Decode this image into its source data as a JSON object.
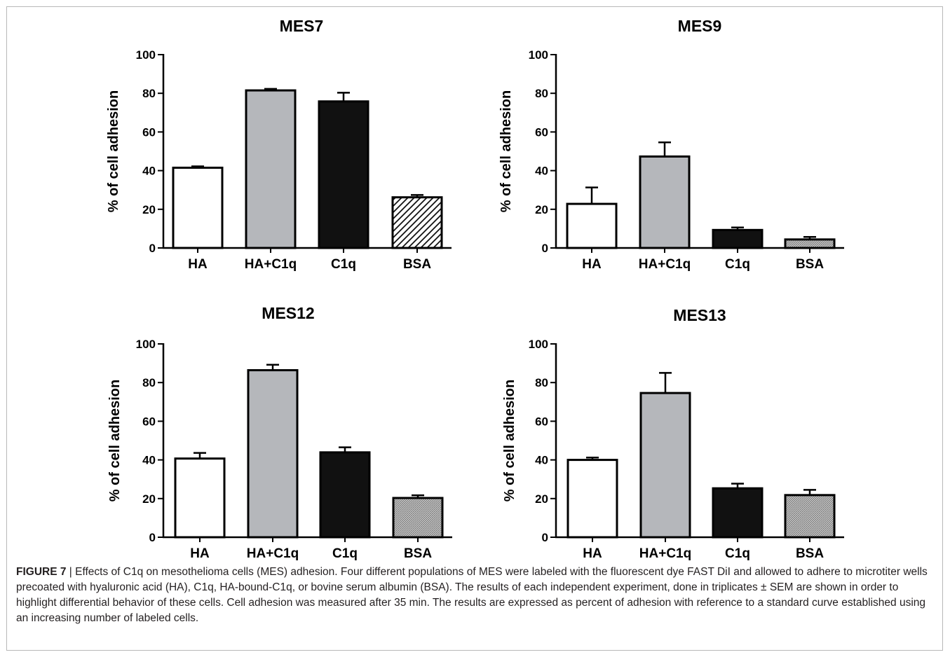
{
  "caption": {
    "label": "FIGURE 7",
    "separator": " | ",
    "text": "Effects of C1q on mesothelioma cells (MES) adhesion. Four different populations of MES were labeled with the fluorescent dye FAST DiI and allowed to adhere to microtiter wells precoated with hyaluronic acid (HA), C1q, HA-bound-C1q, or bovine serum albumin (BSA). The results of each independent experiment, done in triplicates ± SEM are shown in order to highlight differential behavior of these cells. Cell adhesion was measured after 35 min. The results are expressed as percent of adhesion with reference to a standard curve established using an increasing number of labeled cells."
  },
  "styles": {
    "HA": {
      "fill": "#ffffff",
      "pattern": "none"
    },
    "HA+C1q": {
      "fill": "#b5b7bb",
      "pattern": "none"
    },
    "C1q": {
      "fill": "#111111",
      "pattern": "none"
    },
    "BSA": {
      "fill": "#ffffff",
      "pattern": "diagonal-hatch"
    },
    "BSA_fine": {
      "fill": "#bdbdbd",
      "pattern": "fine-stipple"
    }
  },
  "chart_data": [
    {
      "type": "bar",
      "title": "MES7",
      "ylabel": "% of cell adhesion",
      "ylim": [
        0,
        100
      ],
      "yticks": [
        "0",
        "20",
        "40",
        "60",
        "80",
        "100"
      ],
      "categories": [
        "HA",
        "HA+C1q",
        "C1q",
        "BSA"
      ],
      "values": [
        41.5,
        81.5,
        75.8,
        26.2
      ],
      "errors": [
        0.7,
        0.8,
        4.5,
        1.2
      ],
      "bar_styles": [
        "HA",
        "HA+C1q",
        "C1q",
        "BSA"
      ]
    },
    {
      "type": "bar",
      "title": "MES9",
      "ylabel": "% of cell adhesion",
      "ylim": [
        0,
        100
      ],
      "yticks": [
        "0",
        "20",
        "40",
        "60",
        "80",
        "100"
      ],
      "categories": [
        "HA",
        "HA+C1q",
        "C1q",
        "BSA"
      ],
      "values": [
        22.8,
        47.3,
        9.3,
        4.4
      ],
      "errors": [
        8.5,
        7.3,
        1.3,
        1.3
      ],
      "bar_styles": [
        "HA",
        "HA+C1q",
        "C1q",
        "BSA_fine"
      ]
    },
    {
      "type": "bar",
      "title": "MES12",
      "ylabel": "% of cell adhesion",
      "ylim": [
        0,
        100
      ],
      "yticks": [
        "0",
        "20",
        "40",
        "60",
        "80",
        "100"
      ],
      "categories": [
        "HA",
        "HA+C1q",
        "C1q",
        "BSA"
      ],
      "values": [
        40.7,
        86.4,
        43.9,
        20.3
      ],
      "errors": [
        2.9,
        2.8,
        2.6,
        1.4
      ],
      "bar_styles": [
        "HA",
        "HA+C1q",
        "C1q",
        "BSA_fine"
      ]
    },
    {
      "type": "bar",
      "title": "MES13",
      "ylabel": "% of cell adhesion",
      "ylim": [
        0,
        100
      ],
      "yticks": [
        "0",
        "20",
        "40",
        "60",
        "80",
        "100"
      ],
      "categories": [
        "HA",
        "HA+C1q",
        "C1q",
        "BSA"
      ],
      "values": [
        40.0,
        74.6,
        25.3,
        21.8
      ],
      "errors": [
        1.2,
        10.4,
        2.4,
        2.7
      ],
      "bar_styles": [
        "HA",
        "HA+C1q",
        "C1q",
        "BSA_fine"
      ]
    }
  ]
}
